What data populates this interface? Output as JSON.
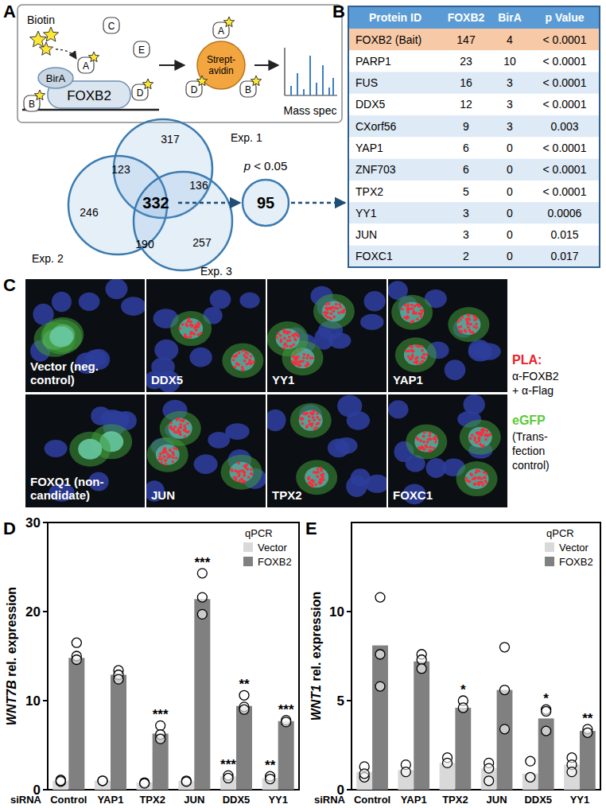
{
  "panel_a": {
    "label": "A",
    "schematic": {
      "biotin": "Biotin",
      "bait": "FOXB2",
      "ligase": "BirA",
      "beads": [
        "Strept-",
        "avidin"
      ],
      "readout": "Mass spec",
      "proteins": [
        "A",
        "B",
        "C",
        "D",
        "E"
      ]
    },
    "venn": {
      "sets": [
        {
          "name": "Exp. 1",
          "only": 317
        },
        {
          "name": "Exp. 2",
          "only": 246
        },
        {
          "name": "Exp. 3",
          "only": 257
        }
      ],
      "exp1_exp2": 123,
      "exp1_exp3": 136,
      "exp2_exp3": 190,
      "all": 332,
      "filter": "p < 0.05",
      "filtered": 95
    }
  },
  "panel_b": {
    "label": "B",
    "columns": [
      "Protein ID",
      "FOXB2",
      "BirA",
      "p Value"
    ],
    "rows": [
      [
        "FOXB2 (Bait)",
        147,
        4,
        "< 0.0001"
      ],
      [
        "PARP1",
        23,
        10,
        "< 0.0001"
      ],
      [
        "FUS",
        16,
        3,
        "< 0.0001"
      ],
      [
        "DDX5",
        12,
        3,
        "< 0.0001"
      ],
      [
        "CXorf56",
        9,
        3,
        0.003
      ],
      [
        "YAP1",
        6,
        0,
        "< 0.0001"
      ],
      [
        "ZNF703",
        6,
        0,
        "< 0.0001"
      ],
      [
        "TPX2",
        5,
        0,
        "< 0.0001"
      ],
      [
        "YY1",
        3,
        0,
        0.0006
      ],
      [
        "JUN",
        3,
        0,
        0.015
      ],
      [
        "FOXC1",
        2,
        0,
        0.017
      ]
    ]
  },
  "panel_c": {
    "label": "C",
    "images": [
      {
        "label": [
          "Vector (neg.",
          "control)"
        ]
      },
      {
        "label": [
          "DDX5"
        ]
      },
      {
        "label": [
          "YY1"
        ]
      },
      {
        "label": [
          "YAP1"
        ]
      },
      {
        "label": [
          "FOXQ1 (non-",
          "candidate)"
        ]
      },
      {
        "label": [
          "JUN"
        ]
      },
      {
        "label": [
          "TPX2"
        ]
      },
      {
        "label": [
          "FOXC1"
        ]
      }
    ],
    "legend": {
      "pla": {
        "title": "PLA:",
        "lines": [
          "α-FOXB2",
          "+ α-Flag"
        ],
        "color": "#e8202a"
      },
      "egfp": {
        "title": "eGFP",
        "lines": [
          "(Trans-",
          "fection",
          "control)"
        ],
        "color": "#5cc93a"
      }
    }
  },
  "chart_data": [
    {
      "type": "bar",
      "panel": "D",
      "y_label": "WNT7B rel. expression",
      "x_label": "siRNA",
      "legend_title": "qPCR",
      "legend": "top-right",
      "categories": [
        "Control",
        "YAP1",
        "TPX2",
        "JUN",
        "DDX5",
        "YY1"
      ],
      "ylim": [
        0,
        30
      ],
      "yticks": [
        0,
        10,
        20,
        30
      ],
      "series": [
        {
          "name": "Vector",
          "color": "#d9d9d9",
          "values": [
            1.0,
            1.0,
            0.8,
            1.0,
            1.5,
            1.3
          ],
          "points": [
            [
              1.1,
              0.9,
              1.0
            ],
            [
              1.0,
              1.0
            ],
            [
              0.8,
              0.7
            ],
            [
              1.0,
              0.9
            ],
            [
              1.6,
              1.3
            ],
            [
              1.5,
              1.2
            ]
          ],
          "significance": [
            null,
            null,
            null,
            null,
            "***",
            "**"
          ]
        },
        {
          "name": "FOXB2",
          "color": "#808080",
          "values": [
            14.8,
            12.9,
            6.3,
            21.4,
            9.4,
            7.7
          ],
          "points": [
            [
              16.5,
              15.0,
              14.6
            ],
            [
              13.4,
              12.9,
              12.4
            ],
            [
              7.2,
              6.2,
              5.7
            ],
            [
              24.3,
              21.6,
              19.7
            ],
            [
              10.6,
              9.3,
              9.0
            ],
            [
              7.8,
              7.6
            ]
          ],
          "significance": [
            null,
            null,
            "***",
            "***",
            "**",
            "***"
          ]
        }
      ]
    },
    {
      "type": "bar",
      "panel": "E",
      "y_label": "WNT1 rel. expression",
      "x_label": "siRNA",
      "legend_title": "qPCR",
      "legend": "top-right",
      "categories": [
        "Control",
        "YAP1",
        "TPX2",
        "JUN",
        "DDX5",
        "YY1"
      ],
      "ylim": [
        0,
        15
      ],
      "yticks": [
        0,
        5,
        10
      ],
      "series": [
        {
          "name": "Vector",
          "color": "#d9d9d9",
          "values": [
            1.0,
            1.1,
            1.5,
            1.2,
            0.9,
            1.4
          ],
          "points": [
            [
              1.3,
              0.7,
              0.9
            ],
            [
              1.4,
              1.0
            ],
            [
              1.8,
              1.5
            ],
            [
              1.5,
              1.2,
              0.5
            ],
            [
              1.6,
              0.7
            ],
            [
              1.8,
              1.4,
              1.0
            ]
          ],
          "significance": [
            null,
            null,
            null,
            null,
            null,
            null
          ]
        },
        {
          "name": "FOXB2",
          "color": "#808080",
          "values": [
            8.1,
            7.2,
            4.6,
            5.6,
            4.0,
            3.3
          ],
          "points": [
            [
              10.8,
              7.6,
              5.8
            ],
            [
              7.6,
              7.3,
              6.8
            ],
            [
              5.0,
              4.6
            ],
            [
              8.0,
              5.6,
              3.4
            ],
            [
              4.5,
              4.4,
              3.3
            ],
            [
              3.4,
              3.2
            ]
          ],
          "significance": [
            null,
            null,
            "*",
            null,
            "*",
            "**"
          ]
        }
      ]
    }
  ]
}
